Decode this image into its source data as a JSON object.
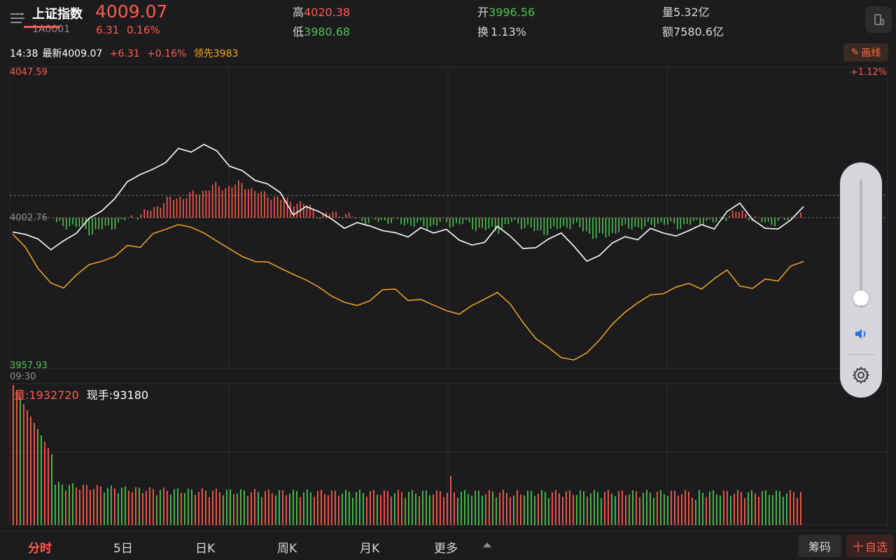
{
  "header": {
    "name": "上证指数",
    "code": "1A0001",
    "price": "4009.07",
    "change": "6.31",
    "change_pct": "0.16%",
    "high_label": "高",
    "high": "4020.38",
    "low_label": "低",
    "low": "3980.68",
    "open_label": "开",
    "open": "3996.56",
    "turnover_label": "换",
    "turnover": "1.13%",
    "volume_label": "量",
    "volume": "5.32亿",
    "amount_label": "额",
    "amount": "7580.6亿"
  },
  "info_line": {
    "time": "14:38",
    "latest_label": "最新",
    "latest": "4009.07",
    "change": "+6.31",
    "change_pct": "+0.16%",
    "leader_label": "领先",
    "leader": "3983",
    "draw_label": "画线"
  },
  "chart_labels": {
    "top_price": "4047.59",
    "mid_price": "4002.76",
    "bottom_price": "3957.93",
    "top_pct": "+1.12%",
    "start_time": "09:30",
    "volume_label": "量:",
    "volume_value": "1932720",
    "hand_label": "现手:",
    "hand_value": "93180"
  },
  "chart_data": {
    "type": "line",
    "ylim": [
      3957.93,
      4047.59
    ],
    "prev_close": 4002.76,
    "series": [
      {
        "values": [
          3998.5,
          3997.8,
          3996.4,
          3993.2,
          3995.9,
          3998.1,
          4002.6,
          4004.8,
          4008.4,
          4013.5,
          4015.6,
          4017.2,
          4019.2,
          4023.4,
          4022.3,
          4024.6,
          4022.7,
          4018.1,
          4016.8,
          4013.9,
          4012.8,
          4010.2,
          4003.6,
          4006.1,
          4004.6,
          4002.4,
          3999.6,
          4001.3,
          4000.3,
          3998.9,
          3998.3,
          3997.0,
          3999.8,
          3998.2,
          3999.3,
          3996.1,
          3994.6,
          3995.4,
          4000.2,
          3997.3,
          3993.6,
          3993.8,
          3996.4,
          3998.2,
          3994.3,
          3989.8,
          3991.5,
          3995.2,
          3997.1,
          3996.2,
          3999.6,
          3998.2,
          3997.3,
          3998.9,
          4000.7,
          3999.4,
          4004.6,
          4007.1,
          4002.2,
          3999.6,
          3999.4,
          4002.1,
          4006.1
        ]
      },
      {
        "values": [
          3997.9,
          3994.0,
          3987.6,
          3983.3,
          3981.8,
          3985.7,
          3988.8,
          3989.8,
          3991.2,
          3994.5,
          3993.9,
          3998.0,
          3999.3,
          4000.7,
          3999.9,
          3998.2,
          3995.8,
          3993.5,
          3991.2,
          3989.7,
          3989.6,
          3987.7,
          3985.9,
          3984.2,
          3982.1,
          3979.4,
          3977.6,
          3976.6,
          3978.0,
          3981.3,
          3981.5,
          3978.1,
          3978.4,
          3976.7,
          3975.1,
          3974.0,
          3976.6,
          3978.5,
          3980.5,
          3977.1,
          3971.6,
          3966.8,
          3964.1,
          3961.1,
          3960.4,
          3962.5,
          3966.3,
          3971.0,
          3974.6,
          3977.4,
          3979.8,
          3980.1,
          3982.1,
          3983.2,
          3981.5,
          3984.6,
          3987.2,
          3982.4,
          3981.7,
          3984.5,
          3983.9,
          3988.4,
          3989.7
        ]
      }
    ]
  },
  "tabs": [
    "分时",
    "5日",
    "日K",
    "周K",
    "月K",
    "更多"
  ],
  "buttons": {
    "chip": "筹码",
    "fav": "自选"
  },
  "colors": {
    "up": "#ff5a4d",
    "down": "#4ec24e",
    "line": "#ffffff",
    "avg": "#f5a623"
  }
}
